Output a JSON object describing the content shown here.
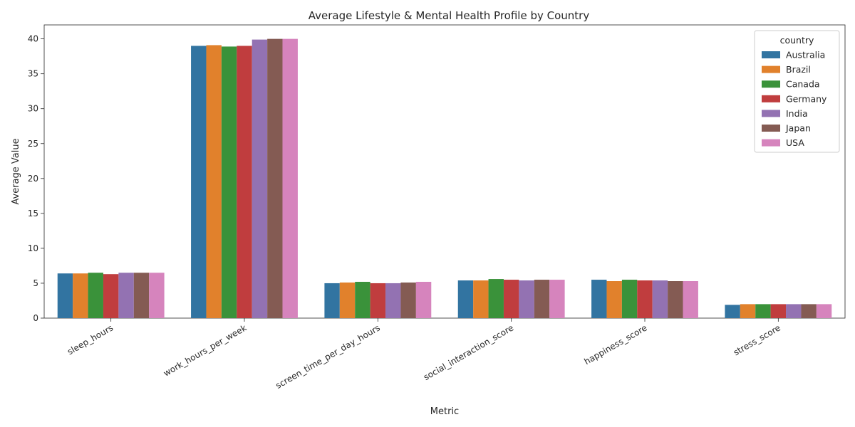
{
  "chart_data": {
    "type": "bar",
    "title": "Average Lifestyle & Mental Health Profile by Country",
    "xlabel": "Metric",
    "ylabel": "Average Value",
    "ylim": [
      0,
      42
    ],
    "yticks": [
      0,
      5,
      10,
      15,
      20,
      25,
      30,
      35,
      40
    ],
    "grid": false,
    "legend": {
      "title": "country",
      "placement": "top-right"
    },
    "categories": [
      "sleep_hours",
      "work_hours_per_week",
      "screen_time_per_day_hours",
      "social_interaction_score",
      "happiness_score",
      "stress_score"
    ],
    "series": [
      {
        "name": "Australia",
        "color": "#3274a1",
        "values": [
          6.4,
          39.0,
          5.0,
          5.4,
          5.5,
          1.9
        ]
      },
      {
        "name": "Brazil",
        "color": "#e1812c",
        "values": [
          6.4,
          39.1,
          5.1,
          5.4,
          5.3,
          2.0
        ]
      },
      {
        "name": "Canada",
        "color": "#3a923a",
        "values": [
          6.5,
          38.9,
          5.2,
          5.6,
          5.5,
          2.0
        ]
      },
      {
        "name": "Germany",
        "color": "#c03d3e",
        "values": [
          6.3,
          39.0,
          5.0,
          5.5,
          5.4,
          2.0
        ]
      },
      {
        "name": "India",
        "color": "#9372b2",
        "values": [
          6.5,
          39.9,
          5.0,
          5.4,
          5.4,
          2.0
        ]
      },
      {
        "name": "Japan",
        "color": "#845b53",
        "values": [
          6.5,
          40.0,
          5.1,
          5.5,
          5.3,
          2.0
        ]
      },
      {
        "name": "USA",
        "color": "#d684bd",
        "values": [
          6.5,
          40.0,
          5.2,
          5.5,
          5.3,
          2.0
        ]
      }
    ]
  }
}
